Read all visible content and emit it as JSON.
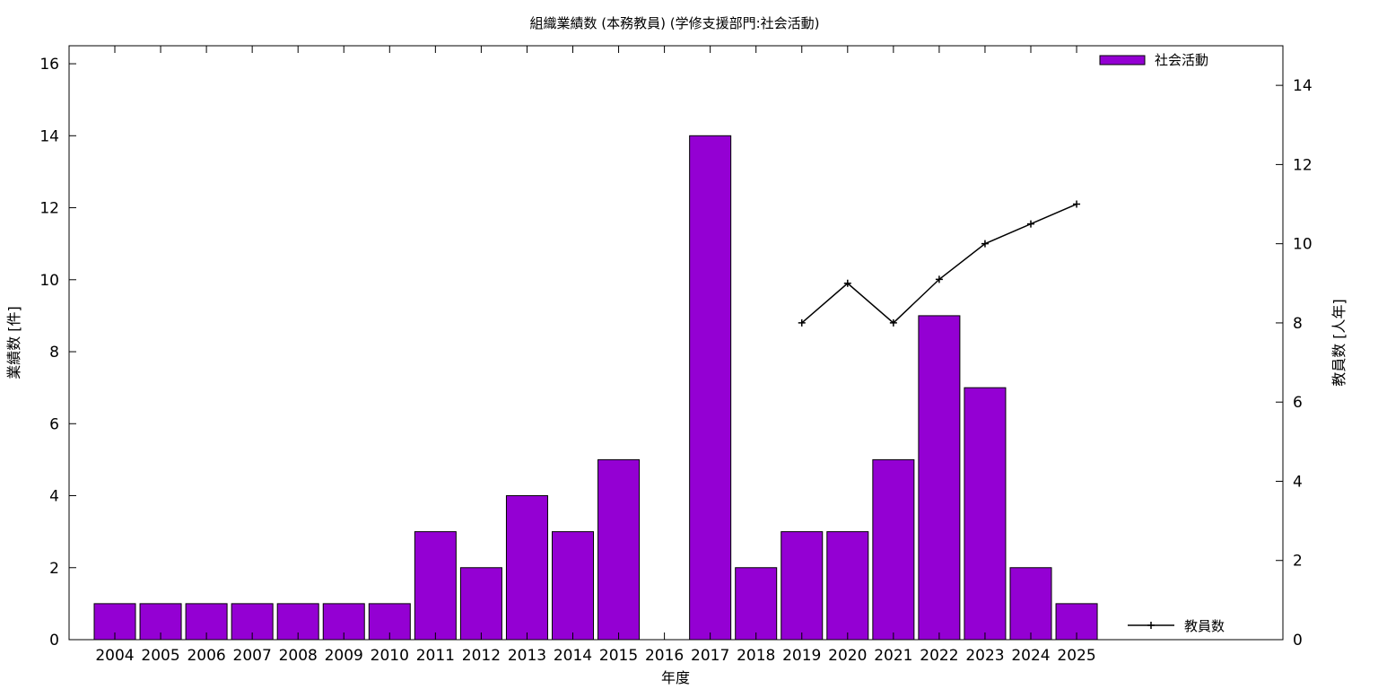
{
  "chart_data": {
    "type": "bar",
    "title": "組織業績数 (本務教員) (学修支援部門:社会活動)",
    "xlabel": "年度",
    "ylabel": "業績数 [件]",
    "y2label": "教員数 [人年]",
    "categories": [
      "2004",
      "2005",
      "2006",
      "2007",
      "2008",
      "2009",
      "2010",
      "2011",
      "2012",
      "2013",
      "2014",
      "2015",
      "2016",
      "2017",
      "2018",
      "2019",
      "2020",
      "2021",
      "2022",
      "2023",
      "2024",
      "2025"
    ],
    "series": [
      {
        "name": "社会活動",
        "type": "bar",
        "axis": "left",
        "color": "#9400D3",
        "values": [
          1,
          1,
          1,
          1,
          1,
          1,
          1,
          3,
          2,
          4,
          3,
          5,
          0,
          14,
          2,
          3,
          3,
          5,
          9,
          7,
          2,
          1
        ]
      },
      {
        "name": "教員数",
        "type": "line",
        "axis": "right",
        "color": "#000000",
        "values": [
          null,
          null,
          null,
          null,
          null,
          null,
          null,
          null,
          null,
          null,
          null,
          null,
          null,
          null,
          null,
          8,
          9,
          8,
          9.1,
          10,
          10.5,
          11
        ]
      }
    ],
    "ylim": [
      0,
      16.5
    ],
    "yticks": [
      0,
      2,
      4,
      6,
      8,
      10,
      12,
      14,
      16
    ],
    "y2lim": [
      0,
      15
    ],
    "y2ticks": [
      0,
      2,
      4,
      6,
      8,
      10,
      12,
      14
    ],
    "legend_placement": "top-right",
    "grid": false
  }
}
